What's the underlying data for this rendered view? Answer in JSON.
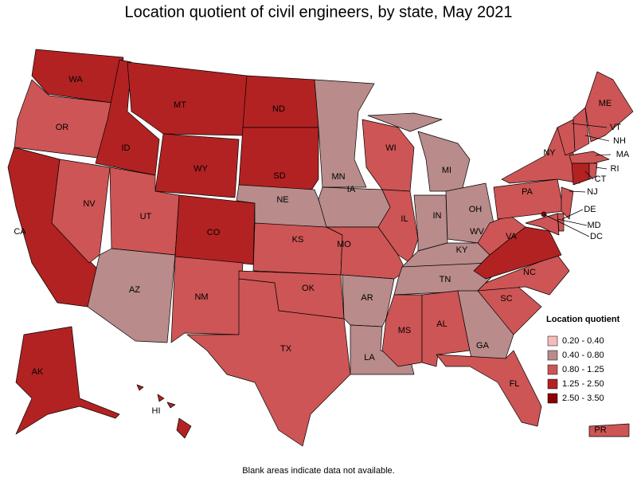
{
  "title": "Location quotient of civil engineers, by state, May 2021",
  "footnote": "Blank areas indicate data not available.",
  "legend": {
    "title": "Location quotient",
    "entries": [
      {
        "label": "0.20 - 0.40",
        "color": "#f6bcbc"
      },
      {
        "label": "0.40 - 0.80",
        "color": "#b98b8b"
      },
      {
        "label": "0.80 - 1.25",
        "color": "#cd5555"
      },
      {
        "label": "1.25 - 2.50",
        "color": "#b22222"
      },
      {
        "label": "2.50 - 3.50",
        "color": "#8b0000"
      }
    ]
  },
  "states": [
    {
      "label": "WA",
      "color": "#b22222"
    },
    {
      "label": "OR",
      "color": "#cd5555"
    },
    {
      "label": "CA",
      "color": "#b22222"
    },
    {
      "label": "NV",
      "color": "#cd5555"
    },
    {
      "label": "ID",
      "color": "#b22222"
    },
    {
      "label": "MT",
      "color": "#b22222"
    },
    {
      "label": "WY",
      "color": "#b22222"
    },
    {
      "label": "UT",
      "color": "#cd5555"
    },
    {
      "label": "AZ",
      "color": "#b98b8b"
    },
    {
      "label": "CO",
      "color": "#b22222"
    },
    {
      "label": "NM",
      "color": "#cd5555"
    },
    {
      "label": "ND",
      "color": "#b22222"
    },
    {
      "label": "SD",
      "color": "#b22222"
    },
    {
      "label": "NE",
      "color": "#b98b8b"
    },
    {
      "label": "KS",
      "color": "#cd5555"
    },
    {
      "label": "OK",
      "color": "#cd5555"
    },
    {
      "label": "TX",
      "color": "#cd5555"
    },
    {
      "label": "MN",
      "color": "#b98b8b"
    },
    {
      "label": "IA",
      "color": "#b98b8b"
    },
    {
      "label": "MO",
      "color": "#cd5555"
    },
    {
      "label": "AR",
      "color": "#b98b8b"
    },
    {
      "label": "LA",
      "color": "#b98b8b"
    },
    {
      "label": "WI",
      "color": "#cd5555"
    },
    {
      "label": "IL",
      "color": "#cd5555"
    },
    {
      "label": "MI",
      "color": "#b98b8b"
    },
    {
      "label": "IN",
      "color": "#b98b8b"
    },
    {
      "label": "OH",
      "color": "#b98b8b"
    },
    {
      "label": "KY",
      "color": "#b98b8b"
    },
    {
      "label": "TN",
      "color": "#b98b8b"
    },
    {
      "label": "MS",
      "color": "#cd5555"
    },
    {
      "label": "AL",
      "color": "#cd5555"
    },
    {
      "label": "GA",
      "color": "#b98b8b"
    },
    {
      "label": "FL",
      "color": "#cd5555"
    },
    {
      "label": "SC",
      "color": "#cd5555"
    },
    {
      "label": "NC",
      "color": "#cd5555"
    },
    {
      "label": "VA",
      "color": "#b22222"
    },
    {
      "label": "WV",
      "color": "#cd5555"
    },
    {
      "label": "PA",
      "color": "#cd5555"
    },
    {
      "label": "NY",
      "color": "#cd5555"
    },
    {
      "label": "VT",
      "color": "#cd5555"
    },
    {
      "label": "NH",
      "color": "#cd5555"
    },
    {
      "label": "ME",
      "color": "#cd5555"
    },
    {
      "label": "MA",
      "color": "#cd5555"
    },
    {
      "label": "CT",
      "color": "#b22222"
    },
    {
      "label": "RI",
      "color": "#cd5555"
    },
    {
      "label": "NJ",
      "color": "#cd5555"
    },
    {
      "label": "DE",
      "color": "#cd5555"
    },
    {
      "label": "MD",
      "color": "#cd5555"
    },
    {
      "label": "DC",
      "color": "#8b0000"
    },
    {
      "label": "AK",
      "color": "#b22222"
    },
    {
      "label": "HI",
      "color": "#b22222"
    },
    {
      "label": "PR",
      "color": "#cd5555"
    }
  ]
}
